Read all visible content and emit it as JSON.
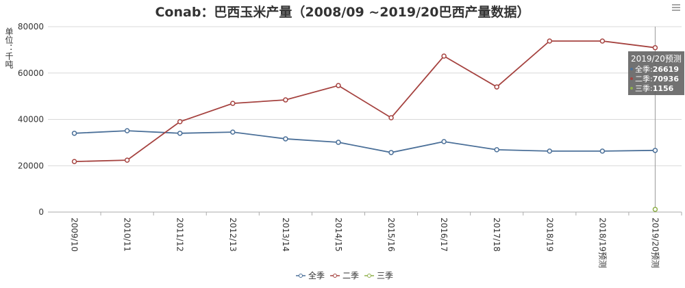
{
  "chart_data": {
    "type": "line",
    "title": "Conab：巴西玉米产量（2008/09 ~2019/20巴西产量数据）",
    "y_label": "单位：千吨",
    "categories": [
      "2009/10",
      "2010/11",
      "2011/12",
      "2012/13",
      "2013/14",
      "2014/15",
      "2015/16",
      "2016/17",
      "2017/18",
      "2018/19",
      "2018/19预测",
      "2019/20预测"
    ],
    "series": [
      {
        "name": "全季",
        "color": "#4a6f98",
        "values": [
          34000,
          35100,
          34000,
          34500,
          31600,
          30100,
          25700,
          30400,
          26900,
          26300,
          26300,
          26619
        ]
      },
      {
        "name": "二季",
        "color": "#a5423f",
        "values": [
          21800,
          22400,
          39000,
          46900,
          48400,
          54600,
          40700,
          67300,
          54000,
          73800,
          73800,
          70936
        ]
      },
      {
        "name": "三季",
        "color": "#8fb04a",
        "values": [
          null,
          null,
          null,
          null,
          null,
          null,
          null,
          null,
          null,
          null,
          null,
          1156
        ]
      }
    ],
    "ylim": [
      0,
      80000
    ],
    "yticks": [
      0,
      20000,
      40000,
      60000,
      80000
    ],
    "grid": true
  }
}
